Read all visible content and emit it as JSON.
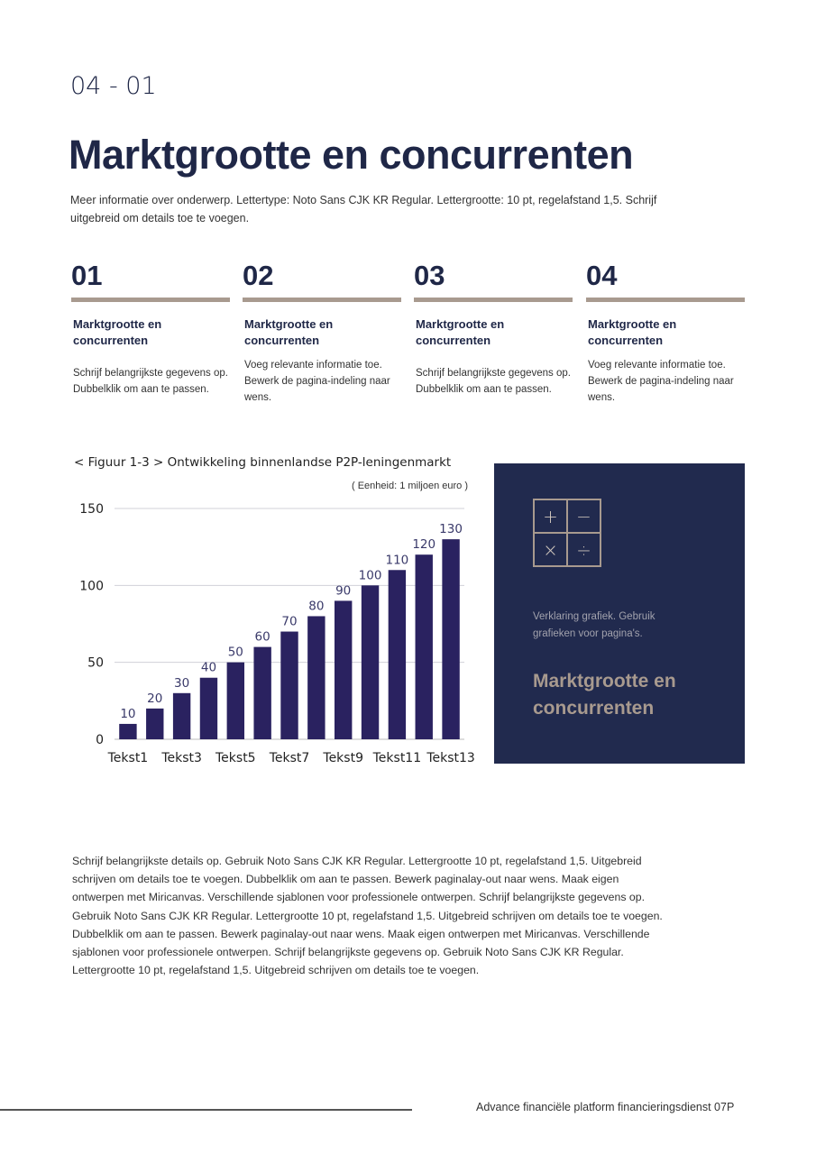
{
  "page_number": "04 - 01",
  "title": "Marktgrootte en concurrenten",
  "intro": "Meer informatie over onderwerp. Lettertype: Noto Sans CJK KR Regular. Lettergrootte: 10 pt, regelafstand 1,5. Schrijf uitgebreid om details toe te voegen.",
  "columns": [
    {
      "num": "01",
      "heading": "Marktgrootte en concurrenten",
      "text": "Schrijf belangrijkste gegevens op. Dubbelklik om aan te passen."
    },
    {
      "num": "02",
      "heading": "Marktgrootte en concurrenten",
      "text": "Voeg relevante informatie toe. Bewerk de pagina-indeling naar wens."
    },
    {
      "num": "03",
      "heading": "Marktgrootte en concurrenten",
      "text": "Schrijf belangrijkste gegevens op. Dubbelklik om aan te passen."
    },
    {
      "num": "04",
      "heading": "Marktgrootte en concurrenten",
      "text": "Voeg relevante informatie toe. Bewerk de pagina-indeling naar wens."
    }
  ],
  "figure": {
    "title": "< Figuur 1-3 > Ontwikkeling binnenlandse P2P-leningenmarkt",
    "unit": "( Eenheid: 1 miljoen euro )"
  },
  "chart_data": {
    "type": "bar",
    "categories": [
      "Tekst1",
      "",
      "Tekst3",
      "",
      "Tekst5",
      "",
      "Tekst7",
      "",
      "Tekst9",
      "",
      "Tekst11",
      "",
      "Tekst13"
    ],
    "values": [
      10,
      20,
      30,
      40,
      50,
      60,
      70,
      80,
      90,
      100,
      110,
      120,
      130
    ],
    "ylim": [
      0,
      150
    ],
    "yticks": [
      0,
      50,
      100,
      150
    ],
    "grid": true,
    "data_labels": true,
    "bar_color": "#2a2260"
  },
  "panel": {
    "icon": "calculator-icon",
    "symbols": [
      "+",
      "−",
      "×",
      "÷"
    ],
    "description": "Verklaring grafiek. Gebruik grafieken voor pagina's.",
    "title": "Marktgrootte en concurrenten"
  },
  "body": "Schrijf belangrijkste details op. Gebruik Noto Sans CJK KR Regular. Lettergrootte 10 pt, regelafstand 1,5. Uitgebreid schrijven om details toe te voegen. Dubbelklik om aan te passen. Bewerk paginalay-out naar wens. Maak eigen ontwerpen met Miricanvas. Verschillende sjablonen voor professionele ontwerpen. Schrijf belangrijkste gegevens op. Gebruik Noto Sans CJK KR Regular. Lettergrootte 10 pt, regelafstand 1,5. Uitgebreid schrijven om details toe te voegen. Dubbelklik om aan te passen. Bewerk paginalay-out naar wens. Maak eigen ontwerpen met Miricanvas. Verschillende sjablonen voor professionele ontwerpen. Schrijf belangrijkste gegevens op. Gebruik Noto Sans CJK KR Regular. Lettergrootte 10 pt, regelafstand 1,5. Uitgebreid schrijven om details toe te voegen.",
  "footer": "Advance financiële platform financieringsdienst 07P",
  "colors": {
    "navy": "#1f2747",
    "accent": "#a89a8f",
    "panel": "#212a4e"
  }
}
